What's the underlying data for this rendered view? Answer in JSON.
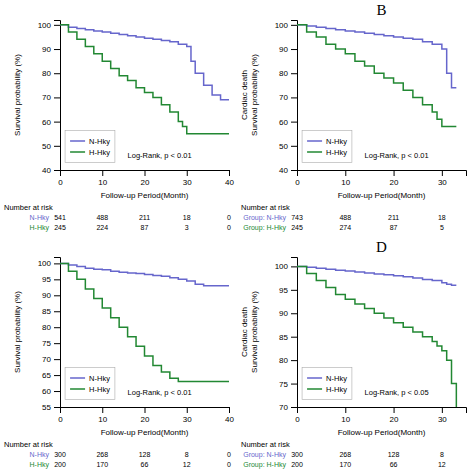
{
  "chart_data": [
    {
      "type": "step",
      "x_label": "Follow-up Period(Month)",
      "y_label": "Survival probability (%)",
      "xlim": [
        0,
        40
      ],
      "ylim": [
        40,
        102
      ],
      "xticks": [
        0,
        10,
        20,
        30,
        40
      ],
      "yticks": [
        40,
        50,
        60,
        70,
        80,
        90,
        100
      ],
      "legend": "lower-left",
      "series": [
        {
          "name": "N-Hky",
          "color": "#6666cc",
          "x": [
            0,
            2,
            4,
            6,
            8,
            10,
            12,
            14,
            16,
            18,
            20,
            22,
            24,
            26,
            28,
            30,
            31,
            32,
            34,
            36,
            38,
            40
          ],
          "values": [
            100,
            99,
            98.5,
            98,
            97.5,
            97,
            96.5,
            96,
            95.5,
            95,
            94.5,
            94,
            93.5,
            93,
            92,
            91,
            85,
            80,
            75,
            71,
            69,
            69
          ]
        },
        {
          "name": "H-Hky",
          "color": "#228833",
          "x": [
            0,
            2,
            4,
            6,
            8,
            10,
            12,
            14,
            16,
            18,
            20,
            22,
            24,
            26,
            28,
            29,
            30,
            35,
            40
          ],
          "values": [
            100,
            97,
            94,
            91,
            88,
            85,
            82,
            79,
            77,
            74,
            72,
            70,
            67,
            64,
            60,
            58,
            55,
            55,
            55
          ]
        }
      ],
      "annotations": [
        "Log-Rank, p < 0.01"
      ],
      "at_risk": {
        "title": "Number at risk",
        "x": [
          0,
          10,
          20,
          30,
          40
        ],
        "rows": [
          {
            "name": "  N-Hky",
            "color": "#6666cc",
            "values": [
              541,
              488,
              211,
              18,
              0
            ]
          },
          {
            "name": "  H-Hky",
            "color": "#228833",
            "values": [
              245,
              224,
              87,
              3,
              0
            ]
          }
        ]
      }
    },
    {
      "type": "step",
      "title": "B",
      "x_label": "Follow-up Period(Month)",
      "y_label": "Cardiac death\nSurvival probability (%)",
      "xlim": [
        0,
        35
      ],
      "ylim": [
        40,
        102
      ],
      "xticks": [
        0,
        10,
        20,
        30
      ],
      "yticks": [
        40,
        50,
        60,
        70,
        80,
        90,
        100
      ],
      "legend": "lower-left",
      "series": [
        {
          "name": "N-Hky",
          "color": "#6666cc",
          "x": [
            0,
            2,
            4,
            6,
            8,
            10,
            12,
            14,
            16,
            18,
            20,
            22,
            24,
            26,
            28,
            30,
            31,
            32,
            33
          ],
          "values": [
            100,
            99.5,
            99,
            98.5,
            98,
            97.5,
            97,
            96.5,
            96,
            95.5,
            95,
            94.5,
            94,
            93,
            92,
            90,
            80,
            74,
            74
          ]
        },
        {
          "name": "H-Hky",
          "color": "#228833",
          "x": [
            0,
            2,
            4,
            6,
            8,
            10,
            12,
            14,
            16,
            18,
            20,
            22,
            24,
            26,
            28,
            29,
            30,
            33
          ],
          "values": [
            100,
            97,
            95,
            92,
            90,
            88,
            85,
            83,
            80,
            78,
            76,
            73,
            70,
            67,
            64,
            61,
            58,
            58
          ]
        }
      ],
      "annotations": [
        "Log-Rank, p < 0.01"
      ],
      "at_risk": {
        "title": "Number at risk",
        "x": [
          0,
          10,
          20,
          30
        ],
        "rows": [
          {
            "name": "Group: N-Hky",
            "color": "#6666cc",
            "values": [
              743,
              488,
              211,
              18
            ]
          },
          {
            "name": "Group: H-Hky",
            "color": "#228833",
            "values": [
              245,
              274,
              87,
              5
            ]
          }
        ]
      }
    },
    {
      "type": "step",
      "x_label": "Follow-up Period(Month)",
      "y_label": "Survival probability (%)",
      "xlim": [
        0,
        40
      ],
      "ylim": [
        55,
        102
      ],
      "xticks": [
        0,
        10,
        20,
        30,
        40
      ],
      "yticks": [
        55,
        60,
        65,
        70,
        75,
        80,
        85,
        90,
        95,
        100
      ],
      "legend": "lower-left",
      "series": [
        {
          "name": "N-Hky",
          "color": "#6666cc",
          "x": [
            0,
            2,
            4,
            6,
            8,
            10,
            12,
            14,
            16,
            18,
            20,
            22,
            24,
            26,
            28,
            30,
            32,
            34,
            36,
            38,
            40
          ],
          "values": [
            100,
            99.5,
            99,
            98.5,
            98.2,
            98,
            97.5,
            97.2,
            97,
            96.8,
            96.5,
            96.2,
            96,
            95.5,
            95,
            94.5,
            93.5,
            93,
            93,
            93,
            93
          ]
        },
        {
          "name": "H-Hky",
          "color": "#228833",
          "x": [
            0,
            2,
            4,
            6,
            8,
            10,
            12,
            14,
            16,
            18,
            20,
            22,
            24,
            26,
            28,
            29,
            30,
            35,
            40
          ],
          "values": [
            100,
            97.5,
            95,
            92,
            89,
            86,
            83,
            80,
            77,
            74,
            71,
            68,
            66,
            64,
            63,
            63,
            63,
            63,
            63
          ]
        }
      ],
      "annotations": [
        "Log-Rank, p < 0.01"
      ],
      "at_risk": {
        "title": "Number at risk",
        "x": [
          0,
          10,
          20,
          30,
          40
        ],
        "rows": [
          {
            "name": "  N-Hky",
            "color": "#6666cc",
            "values": [
              300,
              268,
              128,
              8,
              0
            ]
          },
          {
            "name": "  H-Hky",
            "color": "#228833",
            "values": [
              200,
              170,
              66,
              12,
              0
            ]
          }
        ]
      }
    },
    {
      "type": "step",
      "title": "D",
      "x_label": "Follow-up Period(Month)",
      "y_label": "Cardiac death\nSurvival probability (%)",
      "xlim": [
        0,
        35
      ],
      "ylim": [
        70,
        102
      ],
      "xticks": [
        0,
        10,
        20,
        30
      ],
      "yticks": [
        70,
        75,
        80,
        85,
        90,
        95,
        100
      ],
      "legend": "lower-left",
      "series": [
        {
          "name": "N-Hky",
          "color": "#6666cc",
          "x": [
            0,
            2,
            4,
            6,
            8,
            10,
            12,
            14,
            16,
            18,
            20,
            22,
            24,
            26,
            28,
            30,
            31,
            32,
            33
          ],
          "values": [
            100,
            99.8,
            99.6,
            99.4,
            99.2,
            99,
            98.8,
            98.6,
            98.4,
            98.2,
            98,
            97.8,
            97.5,
            97.2,
            97,
            96.5,
            96.2,
            96,
            96
          ]
        },
        {
          "name": "H-Hky",
          "color": "#228833",
          "x": [
            0,
            2,
            4,
            6,
            8,
            10,
            12,
            14,
            16,
            18,
            20,
            22,
            24,
            26,
            28,
            29,
            30,
            31,
            32,
            33
          ],
          "values": [
            100,
            98.5,
            97,
            95.5,
            94,
            93,
            92,
            91,
            90,
            89,
            88,
            87,
            86,
            85,
            84,
            83,
            82,
            80,
            75,
            70
          ]
        }
      ],
      "annotations": [
        "Log-Rank, p < 0.05"
      ],
      "at_risk": {
        "title": "Number at risk",
        "x": [
          0,
          10,
          20,
          30
        ],
        "rows": [
          {
            "name": "Group: N-Hky",
            "color": "#6666cc",
            "values": [
              300,
              268,
              128,
              8
            ]
          },
          {
            "name": "Group: H-Hky",
            "color": "#228833",
            "values": [
              200,
              170,
              66,
              12
            ]
          }
        ]
      }
    }
  ]
}
